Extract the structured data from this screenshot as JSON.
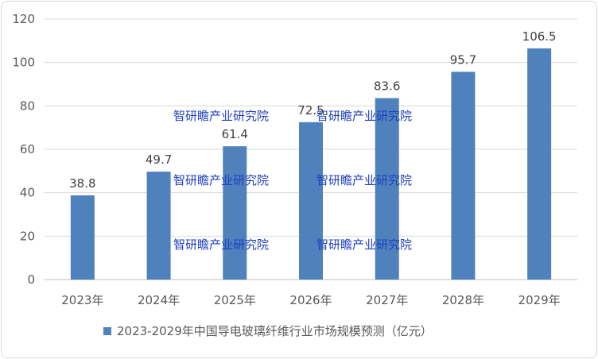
{
  "chart_data": {
    "type": "bar",
    "categories": [
      "2023年",
      "2024年",
      "2025年",
      "2026年",
      "2027年",
      "2028年",
      "2029年"
    ],
    "series": [
      {
        "name": "2023-2029年中国导电玻璃纤维行业市场规模预测（亿元）",
        "values": [
          38.8,
          49.7,
          61.4,
          72.5,
          83.6,
          95.7,
          106.5
        ],
        "data_labels": [
          "38.8",
          "49.7",
          "61.4",
          "72.5",
          "83.6",
          "95.7",
          "106.5"
        ]
      }
    ],
    "ylim": [
      0,
      120
    ],
    "yticks": [
      "0",
      "20",
      "40",
      "60",
      "80",
      "100",
      "120"
    ],
    "grid": true,
    "legend_position": "bottom",
    "bar_color": "#4f81bd"
  },
  "watermark": "智研瞻产业研究院"
}
